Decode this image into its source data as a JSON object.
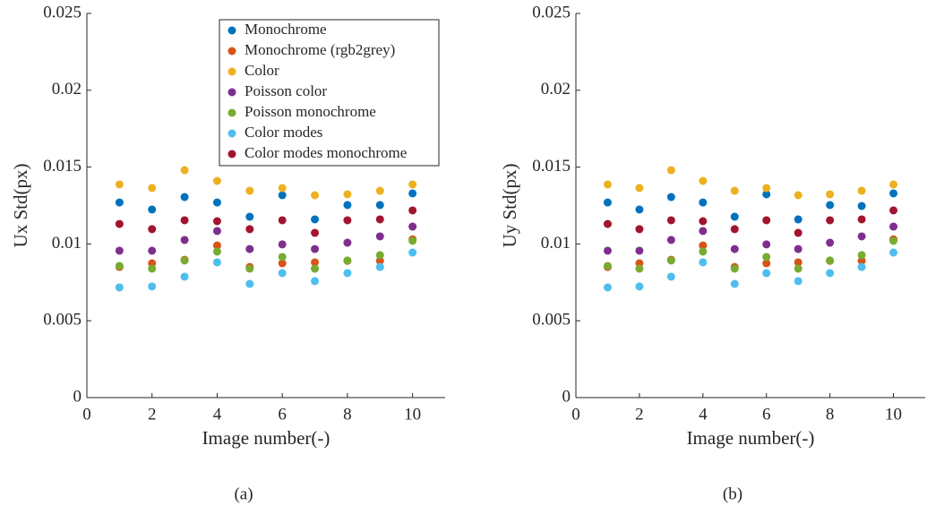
{
  "chart_data": [
    {
      "type": "scatter",
      "ylabel": "Ux Std(px)",
      "xlabel": "Image number(-)",
      "caption": "(a)",
      "x": [
        1,
        2,
        3,
        4,
        5,
        6,
        7,
        8,
        9,
        10
      ],
      "xlim": [
        0,
        11
      ],
      "xticks": [
        0,
        2,
        4,
        6,
        8,
        10
      ],
      "ylim": [
        0,
        0.025
      ],
      "yticks": [
        0,
        0.005,
        0.01,
        0.015,
        0.02,
        0.025
      ],
      "legend": "upper right",
      "series": [
        {
          "name": "Monochrome",
          "color": "#0072BD",
          "values": [
            0.0127,
            0.01224,
            0.01305,
            0.0127,
            0.01177,
            0.01317,
            0.0116,
            0.01253,
            0.01253,
            0.01329
          ]
        },
        {
          "name": "Monochrome (rgb2grey)",
          "color": "#D95319",
          "values": [
            0.0085,
            0.00874,
            0.00897,
            0.0099,
            0.0085,
            0.00874,
            0.0088,
            0.0089,
            0.0089,
            0.0103
          ]
        },
        {
          "name": "Color",
          "color": "#EDB120",
          "values": [
            0.01387,
            0.01364,
            0.0148,
            0.0141,
            0.01346,
            0.01364,
            0.01317,
            0.01323,
            0.01346,
            0.01387
          ]
        },
        {
          "name": "Poisson color",
          "color": "#7E2F8E",
          "values": [
            0.00956,
            0.00956,
            0.01026,
            0.01084,
            0.00967,
            0.00997,
            0.00967,
            0.01008,
            0.01049,
            0.01113
          ]
        },
        {
          "name": "Poisson monochrome",
          "color": "#77AC30",
          "values": [
            0.00857,
            0.00839,
            0.00892,
            0.0095,
            0.00839,
            0.00915,
            0.00839,
            0.00892,
            0.00927,
            0.0102
          ]
        },
        {
          "name": "Color modes",
          "color": "#4DBEEE",
          "values": [
            0.00717,
            0.00723,
            0.00787,
            0.0088,
            0.0074,
            0.0081,
            0.00758,
            0.0081,
            0.0085,
            0.00944
          ]
        },
        {
          "name": "Color modes monochrome",
          "color": "#A2142F",
          "values": [
            0.0113,
            0.01096,
            0.01154,
            0.01148,
            0.01096,
            0.01154,
            0.01072,
            0.01154,
            0.0116,
            0.01218
          ]
        }
      ]
    },
    {
      "type": "scatter",
      "ylabel": "Uy Std(px)",
      "xlabel": "Image number(-)",
      "caption": "(b)",
      "x": [
        1,
        2,
        3,
        4,
        5,
        6,
        7,
        8,
        9,
        10
      ],
      "xlim": [
        0,
        11
      ],
      "xticks": [
        0,
        2,
        4,
        6,
        8,
        10
      ],
      "ylim": [
        0,
        0.025
      ],
      "yticks": [
        0,
        0.005,
        0.01,
        0.015,
        0.02,
        0.025
      ],
      "series": [
        {
          "color": "#0072BD",
          "values": [
            0.0127,
            0.01224,
            0.01305,
            0.0127,
            0.01177,
            0.01323,
            0.0116,
            0.01253,
            0.01247,
            0.01329
          ]
        },
        {
          "color": "#D95319",
          "values": [
            0.0085,
            0.00874,
            0.00897,
            0.0099,
            0.0085,
            0.00874,
            0.0088,
            0.0089,
            0.0089,
            0.0103
          ]
        },
        {
          "color": "#EDB120",
          "values": [
            0.01387,
            0.01364,
            0.0148,
            0.0141,
            0.01346,
            0.01364,
            0.01317,
            0.01323,
            0.01346,
            0.01387
          ]
        },
        {
          "color": "#7E2F8E",
          "values": [
            0.00956,
            0.00956,
            0.01026,
            0.01084,
            0.00967,
            0.00997,
            0.00967,
            0.01008,
            0.01049,
            0.01113
          ]
        },
        {
          "color": "#77AC30",
          "values": [
            0.00857,
            0.00839,
            0.00892,
            0.0095,
            0.00839,
            0.00915,
            0.00839,
            0.00892,
            0.00927,
            0.0102
          ]
        },
        {
          "color": "#4DBEEE",
          "values": [
            0.00717,
            0.00723,
            0.00787,
            0.0088,
            0.0074,
            0.0081,
            0.00758,
            0.0081,
            0.0085,
            0.00944
          ]
        },
        {
          "color": "#A2142F",
          "values": [
            0.0113,
            0.01096,
            0.01154,
            0.01148,
            0.01096,
            0.01154,
            0.01072,
            0.01154,
            0.0116,
            0.01218
          ]
        }
      ]
    }
  ]
}
